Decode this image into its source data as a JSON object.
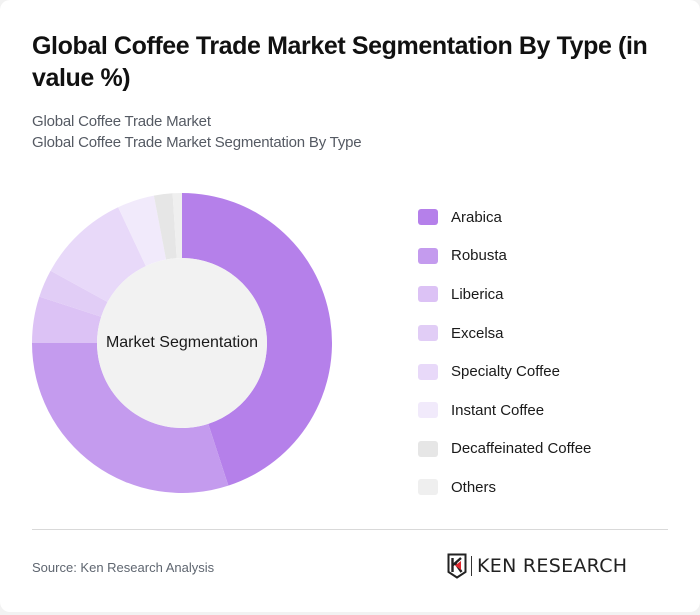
{
  "header": {
    "title": "Global Coffee Trade Market Segmentation By Type (in value %)",
    "subtitle_1": "Global Coffee Trade Market",
    "subtitle_2": "Global Coffee Trade Market Segmentation By Type"
  },
  "chart": {
    "center_label": "Market Segmentation"
  },
  "legend": [
    {
      "label": "Arabica",
      "color": "#b580ea"
    },
    {
      "label": "Robusta",
      "color": "#c49bee"
    },
    {
      "label": "Liberica",
      "color": "#dcc2f5"
    },
    {
      "label": "Excelsa",
      "color": "#e1cdf6"
    },
    {
      "label": "Specialty Coffee",
      "color": "#e8d9f9"
    },
    {
      "label": "Instant Coffee",
      "color": "#f1eafb"
    },
    {
      "label": "Decaffeinated Coffee",
      "color": "#e6e6e6"
    },
    {
      "label": "Others",
      "color": "#efefef"
    }
  ],
  "footer": {
    "source": "Source: Ken Research Analysis",
    "logo_text": "KEN RESEARCH",
    "logo_icon": "ken-research-k-shield-icon"
  },
  "chart_data": {
    "type": "pie",
    "variant": "donut",
    "title": "Global Coffee Trade Market Segmentation By Type (in value %)",
    "subtitle": "Global Coffee Trade Market Segmentation By Type",
    "center_label": "Market Segmentation",
    "categories": [
      "Arabica",
      "Robusta",
      "Liberica",
      "Excelsa",
      "Specialty Coffee",
      "Instant Coffee",
      "Decaffeinated Coffee",
      "Others"
    ],
    "values": [
      45,
      30,
      5,
      3,
      10,
      4,
      2,
      1
    ],
    "colors": [
      "#b580ea",
      "#c49bee",
      "#dcc2f5",
      "#e1cdf6",
      "#e8d9f9",
      "#f1eafb",
      "#e6e6e6",
      "#efefef"
    ],
    "unit": "%",
    "start_angle": "12 o'clock, clockwise",
    "legend_position": "right",
    "source": "Source: Ken Research Analysis"
  }
}
